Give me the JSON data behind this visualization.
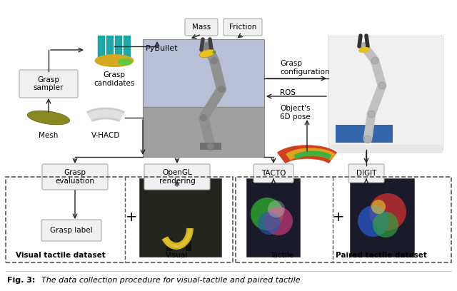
{
  "fig_width": 6.4,
  "fig_height": 4.08,
  "bg_color": "#ffffff",
  "labels": {
    "grasp_sampler": "Grasp\nsampler",
    "grasp_candidates": "Grasp\ncandidates",
    "mesh": "Mesh",
    "vhacd": "V-HACD",
    "pybullet": "PyBullet",
    "mass": "Mass",
    "friction": "Friction",
    "grasp_config": "Grasp\nconfiguration",
    "ros": "ROS",
    "objects_pose": "Object's\n6D pose",
    "grasp_eval": "Grasp\nevaluation",
    "opengl": "OpenGL\nrendering",
    "tacto": "TACTO",
    "digit": "DIGIT",
    "grasp_label": "Grasp label",
    "visual_label": "Visual",
    "tactile_label": "Tactile",
    "visual_tactile_dataset": "Visual tactile dataset",
    "paired_tactile_dataset": "Paired tactile dataset",
    "fig_label": "Fig. 3:",
    "caption": "The data collection procedure for visual-tactile and paired tactile"
  }
}
